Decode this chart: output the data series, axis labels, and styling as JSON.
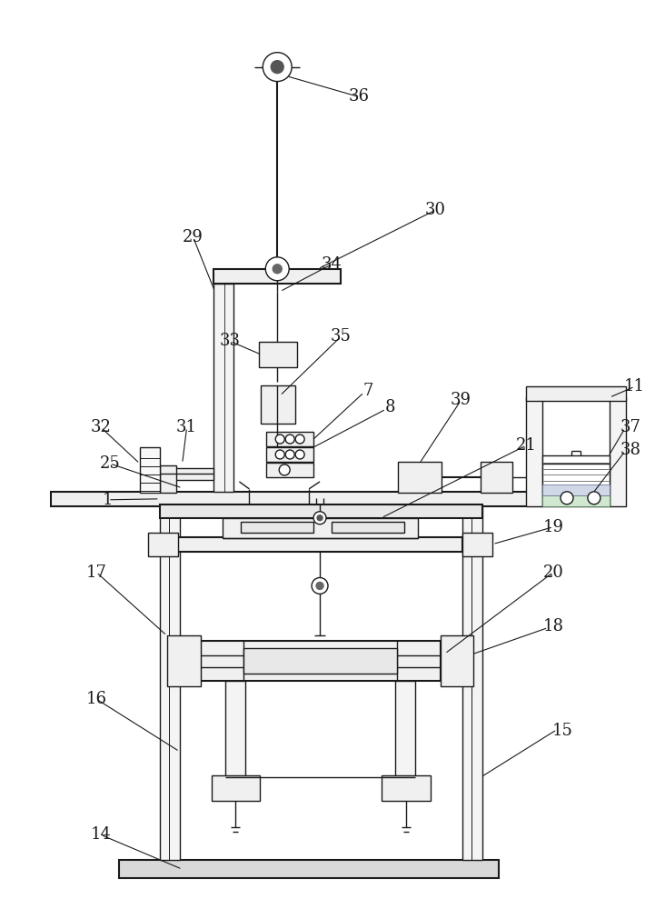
{
  "bg_color": "#ffffff",
  "lc": "#1a1a1a",
  "lw": 1.0,
  "lw2": 1.5,
  "fig_width": 7.32,
  "fig_height": 10.0
}
